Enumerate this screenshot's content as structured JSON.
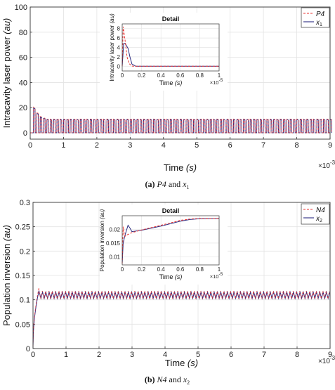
{
  "panels": [
    {
      "caption": {
        "label": "(a)",
        "text_parts": [
          "P4",
          " and ",
          "x",
          "1"
        ]
      },
      "chart_data": {
        "type": "line",
        "xlabel": "Time (s)",
        "ylabel": "Intracavity laser power  (au)",
        "xlim": [
          0,
          9
        ],
        "ylim": [
          -5,
          100
        ],
        "x_ticks": [
          "0",
          "1",
          "2",
          "3",
          "4",
          "5",
          "6",
          "7",
          "8",
          "9"
        ],
        "y_ticks": [
          "0",
          "20",
          "40",
          "60",
          "80",
          "100"
        ],
        "x_multiplier": "×10",
        "x_exponent": "-3",
        "grid": true,
        "legend_position": "top-right",
        "legend": [
          {
            "label": "P4",
            "color": "#e8312f",
            "dash": true
          },
          {
            "label": "x",
            "sub": "1",
            "color": "#2b2b80",
            "dash": false
          }
        ],
        "signal": {
          "start_time": 0.1,
          "period": 0.1,
          "high_value": 11,
          "low_value": 0,
          "initial_peaks": [
            20.5,
            16,
            13,
            12
          ]
        },
        "inset": {
          "title": "Detail",
          "xlabel": "Time (s)",
          "ylabel": "Intracavity laser power  (au)",
          "xlim": [
            0,
            1
          ],
          "ylim": [
            -1,
            9
          ],
          "x_ticks": [
            "0",
            "0.2",
            "0.4",
            "0.6",
            "0.8",
            "1"
          ],
          "y_ticks": [
            "0",
            "2",
            "4",
            "6",
            "8"
          ],
          "x_multiplier": "×10",
          "x_exponent": "-5",
          "series": [
            {
              "name": "P4",
              "x": [
                0,
                0.01,
                0.03,
                0.05,
                0.07,
                0.1,
                0.13,
                0.2,
                0.5,
                1.0
              ],
              "y": [
                0,
                8.4,
                5.5,
                2.0,
                0.6,
                0.05,
                0,
                0,
                0,
                0
              ]
            },
            {
              "name": "x1",
              "x": [
                0,
                0.015,
                0.03,
                0.06,
                0.08,
                0.1,
                0.14,
                0.2,
                0.5,
                1.0
              ],
              "y": [
                0,
                4.8,
                4.9,
                3.8,
                2.0,
                0.5,
                0,
                0,
                0,
                0
              ]
            }
          ]
        }
      }
    },
    {
      "caption": {
        "label": "(b)",
        "text_parts": [
          "N4",
          " and ",
          "x",
          "2"
        ]
      },
      "chart_data": {
        "type": "line",
        "xlabel": "Time (s)",
        "ylabel": "Population inversion  (au)",
        "xlim": [
          0,
          9
        ],
        "ylim": [
          0,
          0.3
        ],
        "x_ticks": [
          "0",
          "1",
          "2",
          "3",
          "4",
          "5",
          "6",
          "7",
          "8",
          "9"
        ],
        "y_ticks": [
          "0",
          "0.05",
          "0.1",
          "0.15",
          "0.2",
          "0.25",
          "0.3"
        ],
        "x_multiplier": "×10",
        "x_exponent": "-3",
        "grid": true,
        "legend_position": "top-right",
        "legend": [
          {
            "label": "N4",
            "color": "#e8312f",
            "dash": true
          },
          {
            "label": "x",
            "sub": "2",
            "color": "#2b2b80",
            "dash": false
          }
        ],
        "signal": {
          "start_value": 0.005,
          "rise_end_time": 0.18,
          "first_peak": 0.125,
          "band_high": 0.118,
          "band_low": 0.102,
          "period": 0.1
        },
        "inset": {
          "title": "Detail",
          "xlabel": "Time (s)",
          "ylabel": "Population inversion  (au)",
          "xlim": [
            0,
            1
          ],
          "ylim": [
            0.007,
            0.025
          ],
          "x_ticks": [
            "0",
            "0.2",
            "0.4",
            "0.6",
            "0.8",
            "1"
          ],
          "y_ticks": [
            "0.01",
            "0.015",
            "0.02"
          ],
          "x_multiplier": "×10",
          "x_exponent": "-5",
          "series": [
            {
              "name": "N4",
              "x": [
                0,
                0.01,
                0.02,
                0.03,
                0.05,
                0.1,
                0.2,
                0.4,
                0.6,
                0.7,
                0.8,
                1.0
              ],
              "y": [
                0.0075,
                0.021,
                0.0185,
                0.0175,
                0.018,
                0.0188,
                0.0198,
                0.0215,
                0.0233,
                0.0238,
                0.024,
                0.024
              ]
            },
            {
              "name": "x2",
              "x": [
                0,
                0.01,
                0.03,
                0.06,
                0.08,
                0.1,
                0.2,
                0.4,
                0.6,
                0.7,
                0.8,
                1.0
              ],
              "y": [
                0.0075,
                0.015,
                0.018,
                0.0215,
                0.0205,
                0.0192,
                0.0197,
                0.0212,
                0.023,
                0.0236,
                0.0239,
                0.024
              ]
            }
          ]
        }
      }
    }
  ]
}
